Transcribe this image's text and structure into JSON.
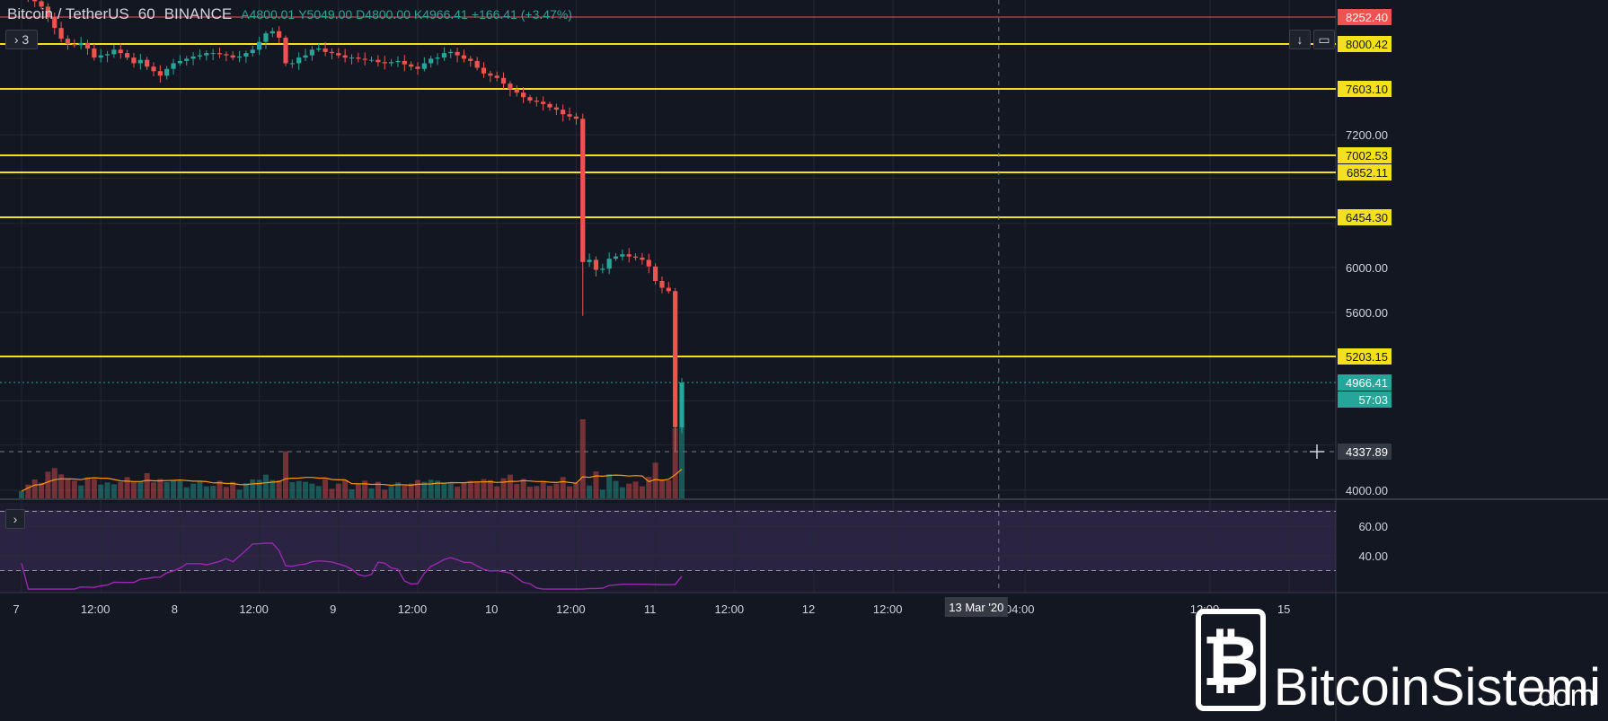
{
  "header": {
    "symbol": "Bitcoin / TetherUS",
    "interval": "60",
    "exchange": "BINANCE",
    "ohlc": {
      "open": "A4800.01",
      "high": "Y5049.00",
      "low": "D4800.00",
      "close": "K4966.41",
      "change": "+166.41 (+3.47%)"
    }
  },
  "toolbar": {
    "collapse_label": "› 3",
    "rsi_toggle_label": "›"
  },
  "colors": {
    "background": "#131722",
    "up": "#26a69a",
    "down": "#ef5350",
    "level": "#f5e11b",
    "rsi": "#9c27b0",
    "volume_ma": "#ff9800"
  },
  "watermark": {
    "brand": "BitcoinSistemi",
    "suffix": ".com"
  },
  "chart_data": {
    "type": "candlestick",
    "price_axis": {
      "ticks": [
        {
          "value": 8000,
          "label": "8000.42",
          "highlight": true
        },
        {
          "value": 7200,
          "label": "7200.00"
        },
        {
          "value": 6000,
          "label": "6000.00"
        },
        {
          "value": 5600,
          "label": "5600.00"
        },
        {
          "value": 4000,
          "label": "4000.00"
        }
      ],
      "range": [
        3900,
        8450
      ]
    },
    "price_tags": [
      {
        "value": 8252.4,
        "label": "8252.40",
        "type": "red-line"
      },
      {
        "value": 4966.41,
        "label": "4966.41",
        "type": "current"
      },
      {
        "value": 4966.41,
        "label": "57:03",
        "type": "countdown"
      },
      {
        "value": 4337.89,
        "label": "4337.89",
        "type": "crosshair"
      }
    ],
    "horizontal_levels": [
      {
        "value": 8000.42,
        "label": "8000.42"
      },
      {
        "value": 7603.1,
        "label": "7603.10"
      },
      {
        "value": 7002.53,
        "label": "7002.53"
      },
      {
        "value": 6852.11,
        "label": "6852.11"
      },
      {
        "value": 6454.3,
        "label": "6454.30"
      },
      {
        "value": 5203.15,
        "label": "5203.15"
      }
    ],
    "time_axis": {
      "ticks": [
        {
          "pos": 0,
          "label": "7"
        },
        {
          "pos": 12,
          "label": "12:00"
        },
        {
          "pos": 24,
          "label": "8"
        },
        {
          "pos": 36,
          "label": "12:00"
        },
        {
          "pos": 48,
          "label": "9"
        },
        {
          "pos": 60,
          "label": "12:00"
        },
        {
          "pos": 72,
          "label": "10"
        },
        {
          "pos": 84,
          "label": "12:00"
        },
        {
          "pos": 96,
          "label": "11"
        },
        {
          "pos": 108,
          "label": "12:00"
        },
        {
          "pos": 120,
          "label": "12"
        },
        {
          "pos": 132,
          "label": "12:00"
        },
        {
          "pos": 152,
          "label": "04:00"
        },
        {
          "pos": 180,
          "label": "12:00"
        },
        {
          "pos": 192,
          "label": "15"
        }
      ],
      "crosshair_label": "13 Mar '20",
      "crosshair_pos": 148
    },
    "candles_close": [
      8450,
      8430,
      8400,
      8350,
      8250,
      8150,
      8050,
      8000,
      7990,
      8010,
      7960,
      7880,
      7900,
      7910,
      7950,
      7920,
      7880,
      7830,
      7860,
      7800,
      7760,
      7720,
      7780,
      7830,
      7850,
      7870,
      7890,
      7900,
      7920,
      7920,
      7910,
      7900,
      7880,
      7890,
      7920,
      7950,
      8020,
      8100,
      8120,
      8060,
      7830,
      7830,
      7880,
      7900,
      7950,
      7960,
      7930,
      7920,
      7900,
      7880,
      7880,
      7870,
      7860,
      7860,
      7840,
      7830,
      7840,
      7850,
      7820,
      7800,
      7780,
      7830,
      7870,
      7880,
      7920,
      7930,
      7900,
      7870,
      7850,
      7790,
      7740,
      7720,
      7700,
      7650,
      7600,
      7570,
      7530,
      7500,
      7490,
      7470,
      7440,
      7420,
      7380,
      7360,
      7340,
      6050,
      6070,
      5980,
      5990,
      6080,
      6100,
      6120,
      6100,
      6090,
      6070,
      6010,
      5880,
      5820,
      5790,
      4560,
      4966
    ],
    "rsi": {
      "levels": [
        {
          "value": 70,
          "label": ""
        },
        {
          "value": 60,
          "label": "60.00"
        },
        {
          "value": 40,
          "label": "40.00"
        },
        {
          "value": 30,
          "label": ""
        }
      ]
    }
  }
}
